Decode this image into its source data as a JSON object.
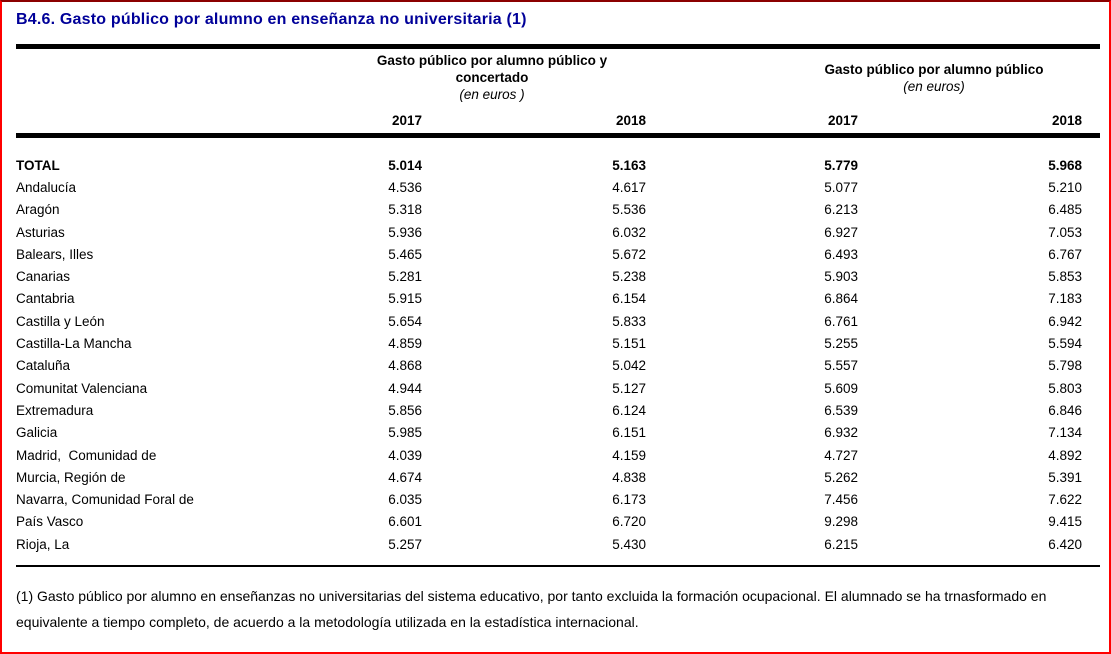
{
  "title": "B4.6. Gasto público por alumno en enseñanza no universitaria (1)",
  "colors": {
    "title_text": "#000099",
    "page_border": "#FF0000",
    "rule": "#000000"
  },
  "table": {
    "group1": {
      "title": "Gasto público por alumno público y concertado",
      "unit": "(en euros )"
    },
    "group2": {
      "title": "Gasto público por alumno público",
      "unit": "(en euros)"
    },
    "year_headers": [
      "2017",
      "2018",
      "2017",
      "2018"
    ],
    "rows": [
      {
        "region": "TOTAL",
        "values": [
          "5.014",
          "5.163",
          "5.779",
          "5.968"
        ],
        "bold": true
      },
      {
        "region": "Andalucía",
        "values": [
          "4.536",
          "4.617",
          "5.077",
          "5.210"
        ]
      },
      {
        "region": "Aragón",
        "values": [
          "5.318",
          "5.536",
          "6.213",
          "6.485"
        ]
      },
      {
        "region": "Asturias",
        "values": [
          "5.936",
          "6.032",
          "6.927",
          "7.053"
        ]
      },
      {
        "region": "Balears, Illes",
        "values": [
          "5.465",
          "5.672",
          "6.493",
          "6.767"
        ]
      },
      {
        "region": "Canarias",
        "values": [
          "5.281",
          "5.238",
          "5.903",
          "5.853"
        ]
      },
      {
        "region": "Cantabria",
        "values": [
          "5.915",
          "6.154",
          "6.864",
          "7.183"
        ]
      },
      {
        "region": "Castilla y León",
        "values": [
          "5.654",
          "5.833",
          "6.761",
          "6.942"
        ]
      },
      {
        "region": "Castilla-La Mancha",
        "values": [
          "4.859",
          "5.151",
          "5.255",
          "5.594"
        ]
      },
      {
        "region": "Cataluña",
        "values": [
          "4.868",
          "5.042",
          "5.557",
          "5.798"
        ]
      },
      {
        "region": "Comunitat Valenciana",
        "values": [
          "4.944",
          "5.127",
          "5.609",
          "5.803"
        ]
      },
      {
        "region": "Extremadura",
        "values": [
          "5.856",
          "6.124",
          "6.539",
          "6.846"
        ]
      },
      {
        "region": "Galicia",
        "values": [
          "5.985",
          "6.151",
          "6.932",
          "7.134"
        ]
      },
      {
        "region": "Madrid,  Comunidad de",
        "values": [
          "4.039",
          "4.159",
          "4.727",
          "4.892"
        ]
      },
      {
        "region": "Murcia, Región de",
        "values": [
          "4.674",
          "4.838",
          "5.262",
          "5.391"
        ]
      },
      {
        "region": "Navarra, Comunidad Foral de",
        "values": [
          "6.035",
          "6.173",
          "7.456",
          "7.622"
        ]
      },
      {
        "region": "País Vasco",
        "values": [
          "6.601",
          "6.720",
          "9.298",
          "9.415"
        ]
      },
      {
        "region": "Rioja, La",
        "values": [
          "5.257",
          "5.430",
          "6.215",
          "6.420"
        ]
      }
    ]
  },
  "footnote": "(1) Gasto público por alumno en enseñanzas no universitarias del sistema educativo, por tanto excluida la formación ocupacional. El alumnado se ha trnasformado en equivalente a tiempo completo, de acuerdo a la metodología utilizada en la estadística internacional."
}
